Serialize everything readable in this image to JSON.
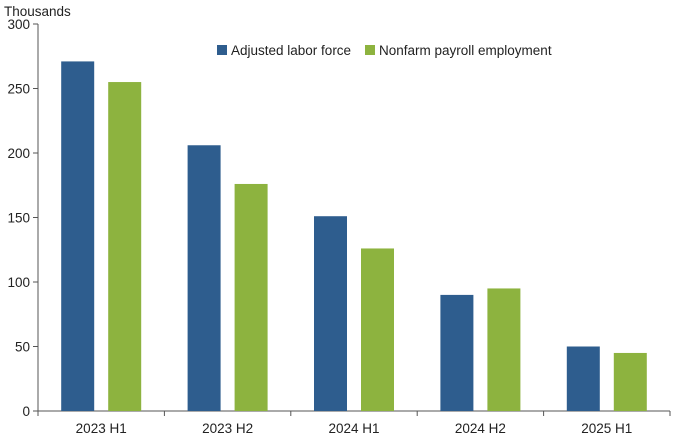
{
  "chart_data": {
    "type": "bar",
    "ylabel": "Thousands",
    "ylim": [
      0,
      300
    ],
    "yticks": [
      0,
      50,
      100,
      150,
      200,
      250,
      300
    ],
    "grid": false,
    "legend_position": "top-center",
    "categories": [
      "2023 H1",
      "2023 H2",
      "2024 H1",
      "2024 H2",
      "2025 H1"
    ],
    "series": [
      {
        "name": "Adjusted labor force",
        "color": "#2e5d8e",
        "values": [
          271,
          206,
          151,
          90,
          50
        ]
      },
      {
        "name": "Nonfarm payroll employment",
        "color": "#8db33f",
        "values": [
          255,
          176,
          126,
          95,
          45
        ]
      }
    ]
  }
}
